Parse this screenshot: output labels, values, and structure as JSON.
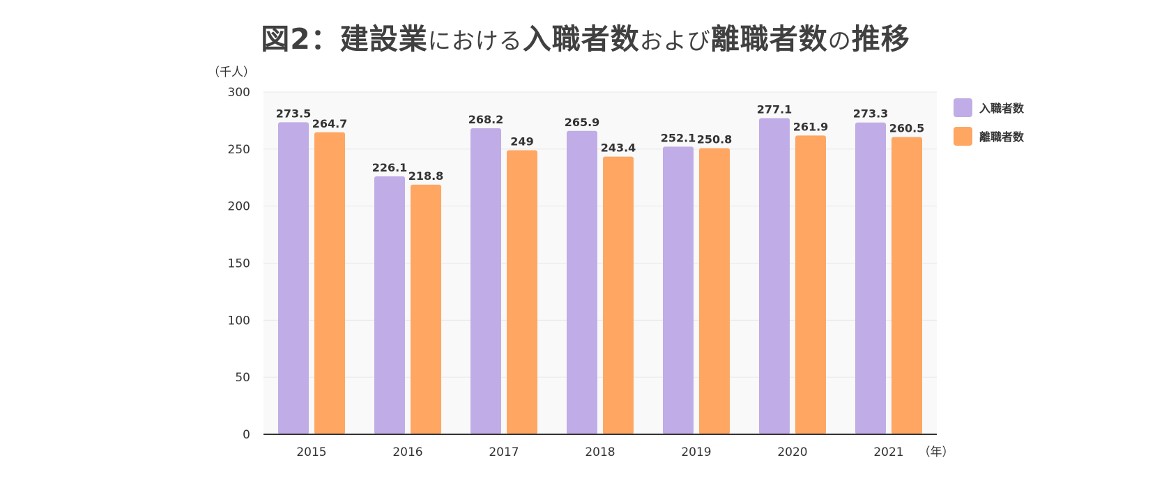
{
  "title": {
    "prefix": "図2：建設業",
    "particle1": "における",
    "word1": "入職者数",
    "particle2": "および",
    "word2": "離職者数",
    "particle3": "の",
    "suffix": "推移"
  },
  "colors": {
    "series1": "#c0ace6",
    "series2": "#fea662",
    "plot_background": "#f8f9f8",
    "gridline": "#e8e8e8",
    "axis": "#333333"
  },
  "chart_data": {
    "type": "bar",
    "title": "図2：建設業における入職者数および離職者数の推移",
    "ylabel": "（千人）",
    "xlabel": "（年）",
    "ylim": [
      0,
      300
    ],
    "yticks": [
      0,
      50,
      100,
      150,
      200,
      250,
      300
    ],
    "grid": true,
    "legend_position": "right",
    "categories": [
      "2015",
      "2016",
      "2017",
      "2018",
      "2019",
      "2020",
      "2021"
    ],
    "series": [
      {
        "name": "入職者数",
        "values": [
          273.5,
          226.1,
          268.2,
          265.9,
          252.1,
          277.1,
          273.3
        ],
        "labels": [
          "273.5",
          "226.1",
          "268.2",
          "265.9",
          "252.1",
          "277.1",
          "273.3"
        ]
      },
      {
        "name": "離職者数",
        "values": [
          264.7,
          218.8,
          249,
          243.4,
          250.8,
          261.9,
          260.5
        ],
        "labels": [
          "264.7",
          "218.8",
          "249",
          "243.4",
          "250.8",
          "261.9",
          "260.5"
        ]
      }
    ]
  }
}
